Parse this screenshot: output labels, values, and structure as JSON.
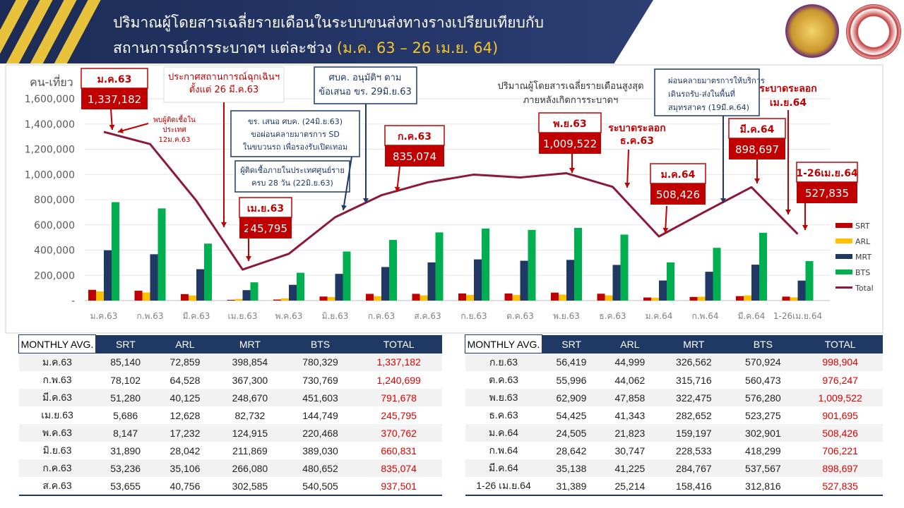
{
  "header": {
    "title_line1": "ปริมาณผู้โดยสารเฉลี่ยรายเดือนในระบบขนส่งทางรางเปรียบเทียบกับ",
    "title_line2_prefix": "สถานการณ์การระบาดฯ แต่ละช่วง ",
    "title_line2_highlight": "(ม.ค. 63 – 26 เม.ย. 64)",
    "logos": [
      "department-seal-logo",
      "ministry-seal-logo"
    ],
    "colors": {
      "banner": "#1d2c56",
      "highlight": "#f5c62a"
    }
  },
  "chart_data": {
    "type": "bar",
    "ylabel": "คน-เที่ยว",
    "ylim": [
      0,
      1600000
    ],
    "yticks": [
      "-",
      "200,000",
      "400,000",
      "600,000",
      "800,000",
      "1,000,000",
      "1,200,000",
      "1,400,000",
      "1,600,000"
    ],
    "categories": [
      "ม.ค.63",
      "ก.พ.63",
      "มี.ค.63",
      "เม.ย.63",
      "พ.ค.63",
      "มิ.ย.63",
      "ก.ค.63",
      "ส.ค.63",
      "ก.ย.63",
      "ต.ค.63",
      "พ.ย.63",
      "ธ.ค.63",
      "ม.ค.64",
      "ก.พ.64",
      "มี.ค.64",
      "1-26เม.ย.64"
    ],
    "legend_position": "right",
    "series": [
      {
        "name": "SRT",
        "type": "bar",
        "color": "#c00000",
        "values": [
          85140,
          78102,
          51280,
          5686,
          8147,
          31890,
          53236,
          53655,
          56419,
          55996,
          62909,
          54425,
          24505,
          28642,
          35138,
          31389
        ]
      },
      {
        "name": "ARL",
        "type": "bar",
        "color": "#ffc000",
        "values": [
          72859,
          64528,
          40125,
          12628,
          17232,
          28042,
          35106,
          40756,
          44999,
          44062,
          47858,
          41343,
          21823,
          30747,
          41225,
          25214
        ]
      },
      {
        "name": "MRT",
        "type": "bar",
        "color": "#1f3864",
        "values": [
          398854,
          367300,
          248670,
          82732,
          124915,
          211869,
          266080,
          302585,
          326562,
          315716,
          322475,
          282652,
          159197,
          228533,
          284767,
          158416
        ]
      },
      {
        "name": "BTS",
        "type": "bar",
        "color": "#00b050",
        "values": [
          780329,
          730769,
          451603,
          144749,
          220468,
          389030,
          480652,
          540505,
          570924,
          560473,
          576280,
          523275,
          302901,
          418299,
          537567,
          312816
        ]
      },
      {
        "name": "Total",
        "type": "line",
        "color": "#8b1a3a",
        "values": [
          1337182,
          1240699,
          791678,
          245795,
          370762,
          660831,
          835074,
          937501,
          998904,
          976247,
          1009522,
          901695,
          508426,
          706221,
          898697,
          527835
        ]
      }
    ],
    "annotations": {
      "boxes": [
        {
          "label": "ม.ค.63",
          "value": "1,337,182"
        },
        {
          "label": "เม.ย.63",
          "value": "245,795"
        },
        {
          "label": "ก.ค.63",
          "value": "835,074"
        },
        {
          "label": "พ.ย.63",
          "value": "1,009,522"
        },
        {
          "label": "ม.ค.64",
          "value": "508,426"
        },
        {
          "label": "มี.ค.64",
          "value": "898,697"
        },
        {
          "label": "1-26เม.ย.64",
          "value": "527,835"
        }
      ],
      "notes": {
        "first_case": [
          "พบผู้ติดเชื้อใน",
          "ประเทศ",
          "12ม.ค.63"
        ],
        "emergency": [
          "ประกาศสถานการณ์ฉุกเฉินฯ",
          "ตั้งแต่ 26 มี.ค.63"
        ],
        "zero_case": [
          "ผู้ติดเชื้อภายในประเทศศูนย์ราย",
          "ครบ 28 วัน (22มิ.ย.63)"
        ],
        "mot_sd": [
          "ขร. เสนอ ศบค. (24มิ.ย.63)",
          "ขอผ่อนคลายมาตรการ SD",
          "ในขบวนรถ เพื่อรองรับเปิดเทอม"
        ],
        "ccsa": [
          "ศบค. อนุมัติฯ ตาม",
          "ข้อเสนอ ขร. 29มิ.ย.63"
        ],
        "peak": [
          "ปริมาณผู้โดยสารเฉลี่ยรายเดือนสูงสุด",
          "ภายหลังเกิดการระบาดฯ"
        ],
        "dec_wave": [
          "ระบาดระลอก",
          "ธ.ค.63"
        ],
        "samut_sakhon": [
          "ผ่อนคลายมาตรการให้บริการ",
          "เดินรถรับ-ส่งในพื้นที่",
          "สมุทรสาคร (19มี.ค.64)"
        ],
        "apr_wave": [
          "ระบาดระลอก",
          "เม.ย.64"
        ]
      }
    }
  },
  "tables": {
    "headers": [
      "MONTHLY AVG.",
      "SRT",
      "ARL",
      "MRT",
      "BTS",
      "TOTAL"
    ],
    "left": [
      [
        "ม.ค.63",
        "85,140",
        "72,859",
        "398,854",
        "780,329",
        "1,337,182"
      ],
      [
        "ก.พ.63",
        "78,102",
        "64,528",
        "367,300",
        "730,769",
        "1,240,699"
      ],
      [
        "มี.ค.63",
        "51,280",
        "40,125",
        "248,670",
        "451,603",
        "791,678"
      ],
      [
        "เม.ย.63",
        "5,686",
        "12,628",
        "82,732",
        "144,749",
        "245,795"
      ],
      [
        "พ.ค.63",
        "8,147",
        "17,232",
        "124,915",
        "220,468",
        "370,762"
      ],
      [
        "มิ.ย.63",
        "31,890",
        "28,042",
        "211,869",
        "389,030",
        "660,831"
      ],
      [
        "ก.ค.63",
        "53,236",
        "35,106",
        "266,080",
        "480,652",
        "835,074"
      ],
      [
        "ส.ค.63",
        "53,655",
        "40,756",
        "302,585",
        "540,505",
        "937,501"
      ]
    ],
    "right": [
      [
        "ก.ย.63",
        "56,419",
        "44,999",
        "326,562",
        "570,924",
        "998,904"
      ],
      [
        "ต.ค.63",
        "55,996",
        "44,062",
        "315,716",
        "560,473",
        "976,247"
      ],
      [
        "พ.ย.63",
        "62,909",
        "47,858",
        "322,475",
        "576,280",
        "1,009,522"
      ],
      [
        "ธ.ค.63",
        "54,425",
        "41,343",
        "282,652",
        "523,275",
        "901,695"
      ],
      [
        "ม.ค.64",
        "24,505",
        "21,823",
        "159,197",
        "302,901",
        "508,426"
      ],
      [
        "ก.พ.64",
        "28,642",
        "30,747",
        "228,533",
        "418,299",
        "706,221"
      ],
      [
        "มี.ค.64",
        "35,138",
        "41,225",
        "284,767",
        "537,567",
        "898,697"
      ],
      [
        "1-26 เม.ย.64",
        "31,389",
        "25,214",
        "158,416",
        "312,816",
        "527,835"
      ]
    ]
  }
}
